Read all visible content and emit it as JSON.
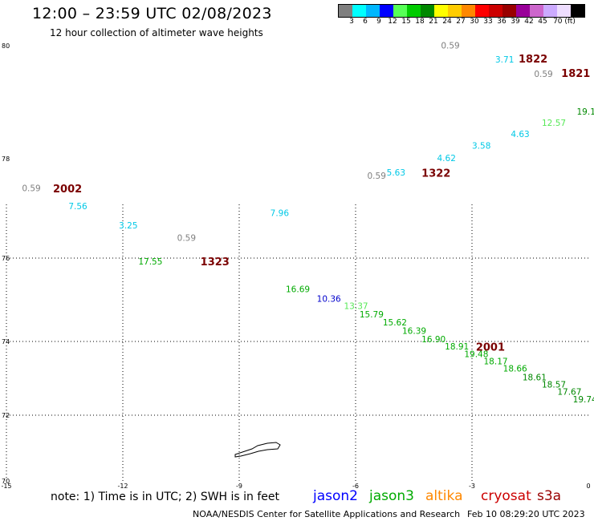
{
  "header": {
    "title": "12:00 – 23:59 UTC 02/08/2023",
    "subtitle": "12 hour collection of altimeter wave heights"
  },
  "colorbar": {
    "colors": [
      "#7f7f7f",
      "#00ffff",
      "#00b7ff",
      "#0000ff",
      "#56ff56",
      "#00cc00",
      "#008800",
      "#ffff00",
      "#ffcc00",
      "#ff8800",
      "#ff0000",
      "#cc0000",
      "#990000",
      "#990099",
      "#cc66cc",
      "#ccaaff",
      "#eeddff",
      "#000000"
    ],
    "ticks": [
      "3",
      "6",
      "9",
      "12",
      "15",
      "18",
      "21",
      "24",
      "27",
      "30",
      "33",
      "36",
      "39",
      "42",
      "45",
      "70 (ft)"
    ]
  },
  "axes": {
    "x_ticks": [
      "-15",
      "-12",
      "-9",
      "-6",
      "-3",
      "0"
    ],
    "y_ticks": [
      "80",
      "78",
      "76",
      "74",
      "72",
      "70"
    ]
  },
  "observations": [
    {
      "t": "0.59",
      "lon": -3.8,
      "lat": 79.95,
      "color": "#7f7f7f"
    },
    {
      "t": "3.71",
      "lon": -2.4,
      "lat": 79.7,
      "color": "#00c8e6"
    },
    {
      "t": "0.59",
      "lon": -1.4,
      "lat": 79.45,
      "color": "#7f7f7f"
    },
    {
      "t": "19.1",
      "lon": -0.3,
      "lat": 78.78,
      "color": "#008800"
    },
    {
      "t": "12.57",
      "lon": -1.2,
      "lat": 78.58,
      "color": "#56e856"
    },
    {
      "t": "4.63",
      "lon": -2.0,
      "lat": 78.38,
      "color": "#00c8e6"
    },
    {
      "t": "3.58",
      "lon": -3.0,
      "lat": 78.18,
      "color": "#00c8e6"
    },
    {
      "t": "4.62",
      "lon": -3.9,
      "lat": 77.95,
      "color": "#00c8e6"
    },
    {
      "t": "5.63",
      "lon": -5.2,
      "lat": 77.66,
      "color": "#00c8e6"
    },
    {
      "t": "0.59",
      "lon": -5.7,
      "lat": 77.6,
      "color": "#7f7f7f"
    },
    {
      "t": "0.59",
      "lon": -14.6,
      "lat": 77.35,
      "color": "#7f7f7f"
    },
    {
      "t": "7.56",
      "lon": -13.4,
      "lat": 76.98,
      "color": "#00c8e6"
    },
    {
      "t": "7.96",
      "lon": -8.2,
      "lat": 76.85,
      "color": "#00c8e6"
    },
    {
      "t": "3.25",
      "lon": -12.1,
      "lat": 76.6,
      "color": "#00c8e6"
    },
    {
      "t": "0.59",
      "lon": -10.6,
      "lat": 76.35,
      "color": "#7f7f7f"
    },
    {
      "t": "17.55",
      "lon": -11.6,
      "lat": 75.85,
      "color": "#00aa00"
    },
    {
      "t": "16.69",
      "lon": -7.8,
      "lat": 75.18,
      "color": "#00aa00"
    },
    {
      "t": "10.36",
      "lon": -7.0,
      "lat": 74.95,
      "color": "#0000cc"
    },
    {
      "t": "13.37",
      "lon": -6.3,
      "lat": 74.78,
      "color": "#56e856"
    },
    {
      "t": "15.79",
      "lon": -5.9,
      "lat": 74.58,
      "color": "#00aa00"
    },
    {
      "t": "15.62",
      "lon": -5.3,
      "lat": 74.38,
      "color": "#00aa00"
    },
    {
      "t": "16.39",
      "lon": -4.8,
      "lat": 74.18,
      "color": "#00aa00"
    },
    {
      "t": "16.90",
      "lon": -4.3,
      "lat": 73.98,
      "color": "#00aa00"
    },
    {
      "t": "18.91",
      "lon": -3.7,
      "lat": 73.78,
      "color": "#00aa00"
    },
    {
      "t": "19.48",
      "lon": -3.2,
      "lat": 73.58,
      "color": "#00aa00"
    },
    {
      "t": "18.17",
      "lon": -2.7,
      "lat": 73.38,
      "color": "#00aa00"
    },
    {
      "t": "18.66",
      "lon": -2.2,
      "lat": 73.18,
      "color": "#00aa00"
    },
    {
      "t": "18.61",
      "lon": -1.7,
      "lat": 72.95,
      "color": "#008800"
    },
    {
      "t": "18.57",
      "lon": -1.2,
      "lat": 72.75,
      "color": "#008800"
    },
    {
      "t": "17.67",
      "lon": -0.8,
      "lat": 72.55,
      "color": "#008800"
    },
    {
      "t": "19.74",
      "lon": -0.4,
      "lat": 72.35,
      "color": "#008800"
    }
  ],
  "pass_labels": [
    {
      "t": "1822",
      "lon": -1.8,
      "lat": 79.7
    },
    {
      "t": "1821",
      "lon": -0.7,
      "lat": 79.45
    },
    {
      "t": "1322",
      "lon": -4.3,
      "lat": 77.64
    },
    {
      "t": "2002",
      "lon": -13.8,
      "lat": 77.32
    },
    {
      "t": "1323",
      "lon": -10.0,
      "lat": 75.83
    },
    {
      "t": "2001",
      "lon": -2.9,
      "lat": 73.75
    }
  ],
  "footer": {
    "note": "note:  1) Time is in UTC;  2) SWH is in feet",
    "satellites": [
      {
        "name": "jason2",
        "color": "#0000ff"
      },
      {
        "name": "jason3",
        "color": "#00aa00"
      },
      {
        "name": "altika",
        "color": "#ff8800"
      },
      {
        "name": "cryosat",
        "color": "#cc0000"
      },
      {
        "name": "s3a",
        "color": "#990000"
      }
    ],
    "credit": "NOAA/NESDIS Center for Satellite Applications and Research",
    "timestamp": "Feb 10 08:29:20 UTC 2023"
  }
}
